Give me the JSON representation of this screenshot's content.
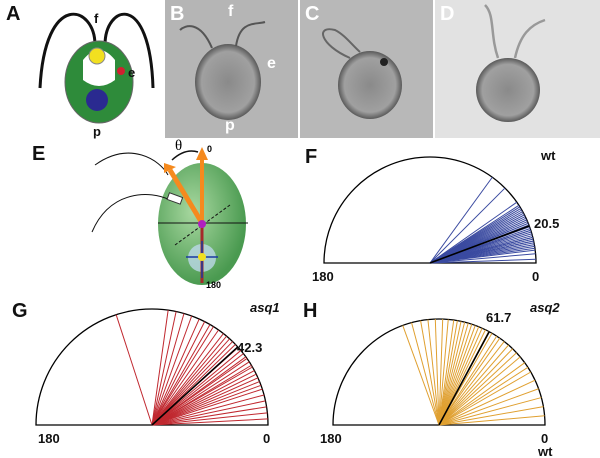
{
  "panels": {
    "A": {
      "label": "A",
      "f": "f",
      "e": "e",
      "p": "p"
    },
    "B": {
      "label": "B",
      "f": "f",
      "e": "e",
      "p": "p"
    },
    "C": {
      "label": "C"
    },
    "D": {
      "label": "D"
    },
    "E": {
      "label": "E",
      "theta": "θ",
      "zero": "0",
      "one_eighty": "180"
    },
    "F": {
      "label": "F",
      "genotype": "wt",
      "mean_label": "20.5",
      "left_tick": "180",
      "right_tick": "0"
    },
    "G": {
      "label": "G",
      "genotype": "asq1",
      "mean_label": "42.3",
      "left_tick": "180",
      "right_tick": "0"
    },
    "H": {
      "label": "H",
      "genotype": "asq2",
      "mean_label": "61.7",
      "left_tick": "180",
      "right_tick": "0",
      "bottom_note": "wt"
    }
  },
  "chart_data": [
    {
      "type": "polar-rose",
      "panel": "F",
      "color": "#3a4aa0",
      "range_deg": [
        0,
        180
      ],
      "mean_deg": 20.5,
      "angles_deg": [
        2,
        5,
        7,
        8,
        9,
        10,
        11,
        12,
        12,
        13,
        14,
        14,
        15,
        16,
        17,
        18,
        18,
        19,
        20,
        21,
        22,
        22,
        23,
        24,
        25,
        26,
        27,
        28,
        29,
        30,
        31,
        32,
        33,
        35,
        45,
        54
      ]
    },
    {
      "type": "polar-rose",
      "panel": "G",
      "color": "#c0282f",
      "range_deg": [
        0,
        180
      ],
      "mean_deg": 42.3,
      "angles_deg": [
        3,
        6,
        9,
        12,
        15,
        18,
        20,
        22,
        24,
        26,
        28,
        30,
        31,
        33,
        35,
        36,
        38,
        40,
        42,
        44,
        46,
        48,
        50,
        52,
        55,
        58,
        60,
        63,
        66,
        70,
        74,
        78,
        82,
        108
      ]
    },
    {
      "type": "polar-rose",
      "panel": "H",
      "color": "#e0a030",
      "range_deg": [
        0,
        180
      ],
      "mean_deg": 61.7,
      "angles_deg": [
        5,
        10,
        15,
        20,
        25,
        30,
        33,
        36,
        40,
        43,
        46,
        49,
        52,
        55,
        57,
        60,
        62,
        64,
        66,
        68,
        70,
        72,
        74,
        76,
        78,
        80,
        82,
        85,
        88,
        92,
        96,
        100,
        105,
        110
      ]
    }
  ]
}
